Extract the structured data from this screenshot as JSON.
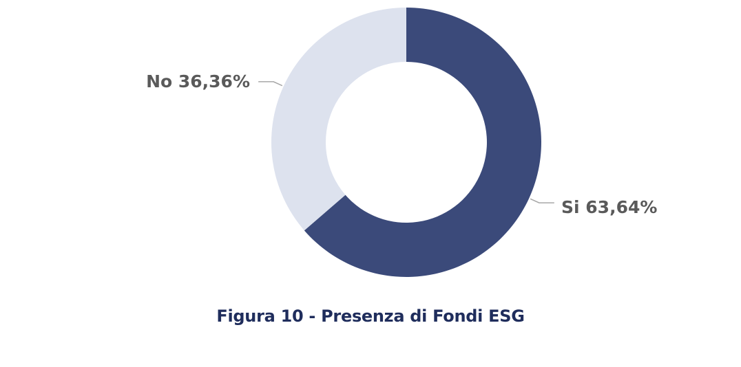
{
  "chart_data": {
    "type": "pie",
    "donut": true,
    "slices": [
      {
        "label": "Si",
        "value": 63.64,
        "display": "Si 63,64%",
        "color": "#3b4a7a"
      },
      {
        "label": "No",
        "value": 36.36,
        "display": "No 36,36%",
        "color": "#dde2ee"
      }
    ],
    "start_position": "top",
    "direction": "clockwise",
    "legend": "none"
  },
  "caption": "Figura 10 - Presenza di Fondi ESG"
}
